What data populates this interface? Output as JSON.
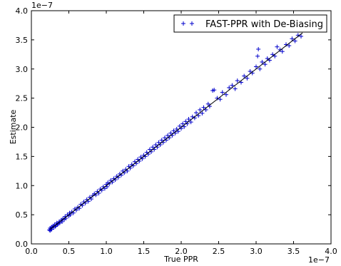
{
  "chart_data": {
    "type": "scatter",
    "xlabel": "True PPR",
    "ylabel": "Estimate",
    "x_offset_text": "1e−7",
    "y_offset_text": "1e−7",
    "xlim": [
      0.0,
      4.0
    ],
    "ylim": [
      0.0,
      4.0
    ],
    "xticks": [
      "0.0",
      "0.5",
      "1.0",
      "1.5",
      "2.0",
      "2.5",
      "3.0",
      "3.5",
      "4.0"
    ],
    "yticks": [
      "0.0",
      "0.5",
      "1.0",
      "1.5",
      "2.0",
      "2.5",
      "3.0",
      "3.5",
      "4.0"
    ],
    "grid": false,
    "legend": {
      "position": "top-right",
      "entries": [
        "FAST-PPR with De-Biasing"
      ]
    },
    "marker_color": "#0000cc",
    "reference_line": {
      "x": [
        0.25,
        3.62
      ],
      "y": [
        0.25,
        3.62
      ]
    },
    "series": [
      {
        "name": "FAST-PPR with De-Biasing",
        "points": [
          [
            0.24,
            0.24
          ],
          [
            0.25,
            0.23
          ],
          [
            0.25,
            0.27
          ],
          [
            0.26,
            0.25
          ],
          [
            0.27,
            0.29
          ],
          [
            0.27,
            0.25
          ],
          [
            0.28,
            0.28
          ],
          [
            0.29,
            0.31
          ],
          [
            0.3,
            0.28
          ],
          [
            0.31,
            0.33
          ],
          [
            0.32,
            0.3
          ],
          [
            0.33,
            0.32
          ],
          [
            0.34,
            0.36
          ],
          [
            0.35,
            0.33
          ],
          [
            0.36,
            0.35
          ],
          [
            0.37,
            0.38
          ],
          [
            0.38,
            0.36
          ],
          [
            0.4,
            0.41
          ],
          [
            0.41,
            0.38
          ],
          [
            0.42,
            0.43
          ],
          [
            0.44,
            0.42
          ],
          [
            0.45,
            0.47
          ],
          [
            0.46,
            0.44
          ],
          [
            0.48,
            0.5
          ],
          [
            0.5,
            0.48
          ],
          [
            0.51,
            0.53
          ],
          [
            0.52,
            0.5
          ],
          [
            0.54,
            0.55
          ],
          [
            0.56,
            0.53
          ],
          [
            0.58,
            0.6
          ],
          [
            0.6,
            0.58
          ],
          [
            0.62,
            0.63
          ],
          [
            0.64,
            0.61
          ],
          [
            0.66,
            0.68
          ],
          [
            0.68,
            0.66
          ],
          [
            0.7,
            0.72
          ],
          [
            0.72,
            0.7
          ],
          [
            0.74,
            0.76
          ],
          [
            0.76,
            0.73
          ],
          [
            0.78,
            0.8
          ],
          [
            0.8,
            0.77
          ],
          [
            0.82,
            0.83
          ],
          [
            0.84,
            0.86
          ],
          [
            0.86,
            0.84
          ],
          [
            0.88,
            0.9
          ],
          [
            0.9,
            0.87
          ],
          [
            0.92,
            0.94
          ],
          [
            0.94,
            0.92
          ],
          [
            0.96,
            0.98
          ],
          [
            0.98,
            0.95
          ],
          [
            1.0,
            1.02
          ],
          [
            1.01,
            0.98
          ],
          [
            1.02,
            1.05
          ],
          [
            1.04,
            1.03
          ],
          [
            1.06,
            1.09
          ],
          [
            1.08,
            1.06
          ],
          [
            1.1,
            1.12
          ],
          [
            1.12,
            1.1
          ],
          [
            1.14,
            1.16
          ],
          [
            1.16,
            1.14
          ],
          [
            1.18,
            1.2
          ],
          [
            1.2,
            1.18
          ],
          [
            1.22,
            1.25
          ],
          [
            1.24,
            1.22
          ],
          [
            1.26,
            1.28
          ],
          [
            1.28,
            1.25
          ],
          [
            1.3,
            1.33
          ],
          [
            1.32,
            1.3
          ],
          [
            1.34,
            1.36
          ],
          [
            1.36,
            1.34
          ],
          [
            1.38,
            1.41
          ],
          [
            1.4,
            1.38
          ],
          [
            1.42,
            1.45
          ],
          [
            1.44,
            1.42
          ],
          [
            1.46,
            1.49
          ],
          [
            1.48,
            1.46
          ],
          [
            1.5,
            1.52
          ],
          [
            1.52,
            1.5
          ],
          [
            1.54,
            1.57
          ],
          [
            1.56,
            1.54
          ],
          [
            1.58,
            1.62
          ],
          [
            1.6,
            1.58
          ],
          [
            1.62,
            1.66
          ],
          [
            1.64,
            1.62
          ],
          [
            1.66,
            1.7
          ],
          [
            1.68,
            1.66
          ],
          [
            1.7,
            1.74
          ],
          [
            1.72,
            1.7
          ],
          [
            1.74,
            1.78
          ],
          [
            1.76,
            1.74
          ],
          [
            1.78,
            1.82
          ],
          [
            1.8,
            1.78
          ],
          [
            1.82,
            1.86
          ],
          [
            1.84,
            1.82
          ],
          [
            1.86,
            1.9
          ],
          [
            1.88,
            1.86
          ],
          [
            1.9,
            1.94
          ],
          [
            1.92,
            1.9
          ],
          [
            1.94,
            1.97
          ],
          [
            1.96,
            1.93
          ],
          [
            1.98,
            2.02
          ],
          [
            2.0,
            1.98
          ],
          [
            2.02,
            2.06
          ],
          [
            2.04,
            2.01
          ],
          [
            2.06,
            2.1
          ],
          [
            2.08,
            2.06
          ],
          [
            2.1,
            2.14
          ],
          [
            2.13,
            2.09
          ],
          [
            2.15,
            2.18
          ],
          [
            2.18,
            2.16
          ],
          [
            2.2,
            2.25
          ],
          [
            2.23,
            2.2
          ],
          [
            2.25,
            2.3
          ],
          [
            2.28,
            2.24
          ],
          [
            2.3,
            2.34
          ],
          [
            2.33,
            2.3
          ],
          [
            2.36,
            2.4
          ],
          [
            2.38,
            2.36
          ],
          [
            2.42,
            2.63
          ],
          [
            2.44,
            2.64
          ],
          [
            2.48,
            2.5
          ],
          [
            2.52,
            2.48
          ],
          [
            2.55,
            2.6
          ],
          [
            2.6,
            2.56
          ],
          [
            2.64,
            2.68
          ],
          [
            2.68,
            2.72
          ],
          [
            2.72,
            2.66
          ],
          [
            2.75,
            2.8
          ],
          [
            2.8,
            2.77
          ],
          [
            2.84,
            2.88
          ],
          [
            2.88,
            2.84
          ],
          [
            2.92,
            2.96
          ],
          [
            2.95,
            2.93
          ],
          [
            3.0,
            3.04
          ],
          [
            3.02,
            3.22
          ],
          [
            3.03,
            3.34
          ],
          [
            3.05,
            3.0
          ],
          [
            3.08,
            3.12
          ],
          [
            3.12,
            3.08
          ],
          [
            3.15,
            3.18
          ],
          [
            3.18,
            3.15
          ],
          [
            3.22,
            3.25
          ],
          [
            3.25,
            3.22
          ],
          [
            3.28,
            3.38
          ],
          [
            3.32,
            3.33
          ],
          [
            3.35,
            3.3
          ],
          [
            3.4,
            3.42
          ],
          [
            3.44,
            3.4
          ],
          [
            3.48,
            3.52
          ],
          [
            3.52,
            3.48
          ],
          [
            3.56,
            3.58
          ],
          [
            3.6,
            3.56
          ]
        ]
      }
    ]
  }
}
